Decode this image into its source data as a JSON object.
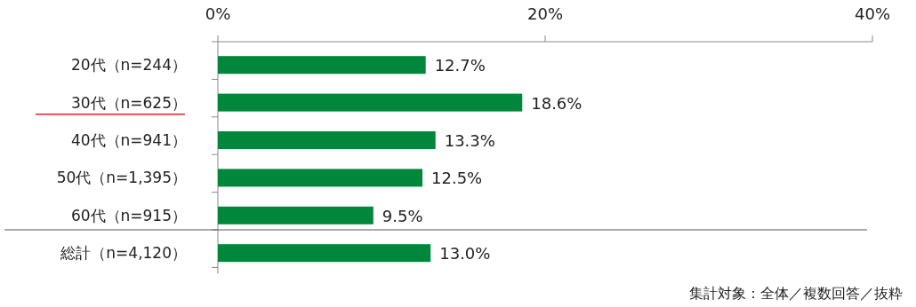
{
  "chart_data": {
    "type": "bar",
    "orientation": "horizontal",
    "categories": [
      "20代（n=244）",
      "30代（n=625）",
      "40代（n=941）",
      "50代（n=1,395）",
      "60代（n=915）",
      "総計（n=4,120）"
    ],
    "values": [
      12.7,
      18.6,
      13.3,
      12.5,
      9.5,
      13.0
    ],
    "value_labels": [
      "12.7%",
      "18.6%",
      "13.3%",
      "12.5%",
      "9.5%",
      "13.0%"
    ],
    "color": "#00873c",
    "xlim": [
      0,
      40
    ],
    "xticks": [
      {
        "value": 0,
        "label": "0%"
      },
      {
        "value": 20,
        "label": "20%"
      },
      {
        "value": 40,
        "label": "40%"
      }
    ],
    "annotations": [
      "集計対象：全体／複数回答／抜粋"
    ]
  }
}
